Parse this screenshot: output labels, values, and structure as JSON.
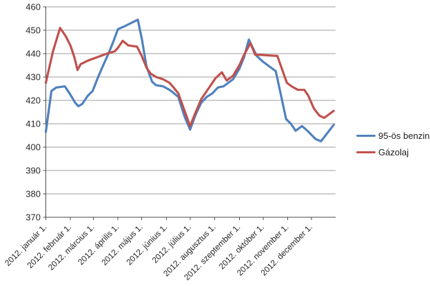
{
  "chart_data": {
    "type": "line",
    "title": "",
    "grid": true,
    "legend_position": "right",
    "points_format": "[day_of_year_2012, price_value] — values read from gridlines",
    "y_axis": {
      "min": 370,
      "max": 460,
      "step": 10,
      "tick_labels": [
        "370",
        "380",
        "390",
        "400",
        "410",
        "420",
        "430",
        "440",
        "450",
        "460"
      ]
    },
    "x_axis": {
      "tick_labels": [
        "2012. január 1.",
        "2012. február 1.",
        "2012. március 1.",
        "2012. április 1.",
        "2012. május 1.",
        "2012. június 1.",
        "2012. július 1.",
        "2012. augusztus 1.",
        "2012. szeptember 1.",
        "2012. október 1.",
        "2012. november 1.",
        "2012. december 1."
      ],
      "tick_day_offsets": [
        0,
        31,
        60,
        91,
        121,
        152,
        182,
        213,
        244,
        274,
        305,
        335
      ]
    },
    "style": {
      "grid_color": "#9c9c9c",
      "axis_color": "#4a4a4a",
      "text_color": "#262626",
      "background": "#ffffff"
    },
    "series": [
      {
        "name": "95-ös benzin",
        "color": "#4F81BD",
        "points": [
          [
            0,
            406.5
          ],
          [
            7,
            424
          ],
          [
            13,
            425.5
          ],
          [
            24,
            426
          ],
          [
            30,
            423
          ],
          [
            37,
            419
          ],
          [
            41,
            417.5
          ],
          [
            46,
            418.5
          ],
          [
            53,
            422
          ],
          [
            59,
            424
          ],
          [
            66,
            430
          ],
          [
            73,
            435.5
          ],
          [
            79,
            440
          ],
          [
            85,
            445
          ],
          [
            91,
            450.5
          ],
          [
            98,
            451.5
          ],
          [
            104,
            452.5
          ],
          [
            110,
            453.5
          ],
          [
            116,
            454.5
          ],
          [
            121,
            446.5
          ],
          [
            127,
            434.5
          ],
          [
            134,
            428
          ],
          [
            139,
            426.5
          ],
          [
            148,
            426
          ],
          [
            156,
            424.5
          ],
          [
            160,
            423.5
          ],
          [
            167,
            421.5
          ],
          [
            175,
            413
          ],
          [
            182,
            407.5
          ],
          [
            189,
            414
          ],
          [
            196,
            419
          ],
          [
            203,
            421.5
          ],
          [
            210,
            423
          ],
          [
            217,
            425.5
          ],
          [
            224,
            426
          ],
          [
            236,
            429
          ],
          [
            244,
            433.5
          ],
          [
            250,
            438.5
          ],
          [
            256,
            446
          ],
          [
            266,
            439
          ],
          [
            274,
            436.5
          ],
          [
            290,
            432.5
          ],
          [
            303,
            412
          ],
          [
            309,
            410
          ],
          [
            315,
            407
          ],
          [
            323,
            409
          ],
          [
            330,
            407
          ],
          [
            340,
            403.5
          ],
          [
            347,
            402.5
          ],
          [
            355,
            406
          ],
          [
            363,
            409.5
          ]
        ]
      },
      {
        "name": "Gázolaj",
        "color": "#C0504D",
        "points": [
          [
            0,
            427.5
          ],
          [
            9,
            441
          ],
          [
            18,
            451
          ],
          [
            25,
            447.5
          ],
          [
            31,
            443.5
          ],
          [
            36,
            438.5
          ],
          [
            40,
            433
          ],
          [
            44,
            435.5
          ],
          [
            53,
            437
          ],
          [
            65,
            438.5
          ],
          [
            77,
            440
          ],
          [
            87,
            441
          ],
          [
            91,
            442.5
          ],
          [
            97,
            445.5
          ],
          [
            104,
            443.5
          ],
          [
            115,
            443
          ],
          [
            121,
            439
          ],
          [
            127,
            434
          ],
          [
            132,
            431.5
          ],
          [
            139,
            430
          ],
          [
            148,
            429
          ],
          [
            156,
            427.5
          ],
          [
            160,
            426
          ],
          [
            167,
            423
          ],
          [
            175,
            415.5
          ],
          [
            182,
            409
          ],
          [
            189,
            415
          ],
          [
            196,
            420.5
          ],
          [
            203,
            424
          ],
          [
            208,
            426.5
          ],
          [
            214,
            429.5
          ],
          [
            222,
            432
          ],
          [
            228,
            428.5
          ],
          [
            236,
            430.5
          ],
          [
            244,
            435
          ],
          [
            250,
            439.5
          ],
          [
            258,
            444.5
          ],
          [
            264,
            439.5
          ],
          [
            268,
            439.5
          ],
          [
            292,
            439
          ],
          [
            304,
            427.5
          ],
          [
            310,
            426
          ],
          [
            318,
            424.5
          ],
          [
            326,
            424.5
          ],
          [
            331,
            422
          ],
          [
            338,
            416.5
          ],
          [
            345,
            413.5
          ],
          [
            351,
            412.5
          ],
          [
            363,
            415.5
          ]
        ]
      }
    ]
  },
  "legend": {
    "items": [
      {
        "label": "95-ös benzin"
      },
      {
        "label": "Gázolaj"
      }
    ]
  }
}
